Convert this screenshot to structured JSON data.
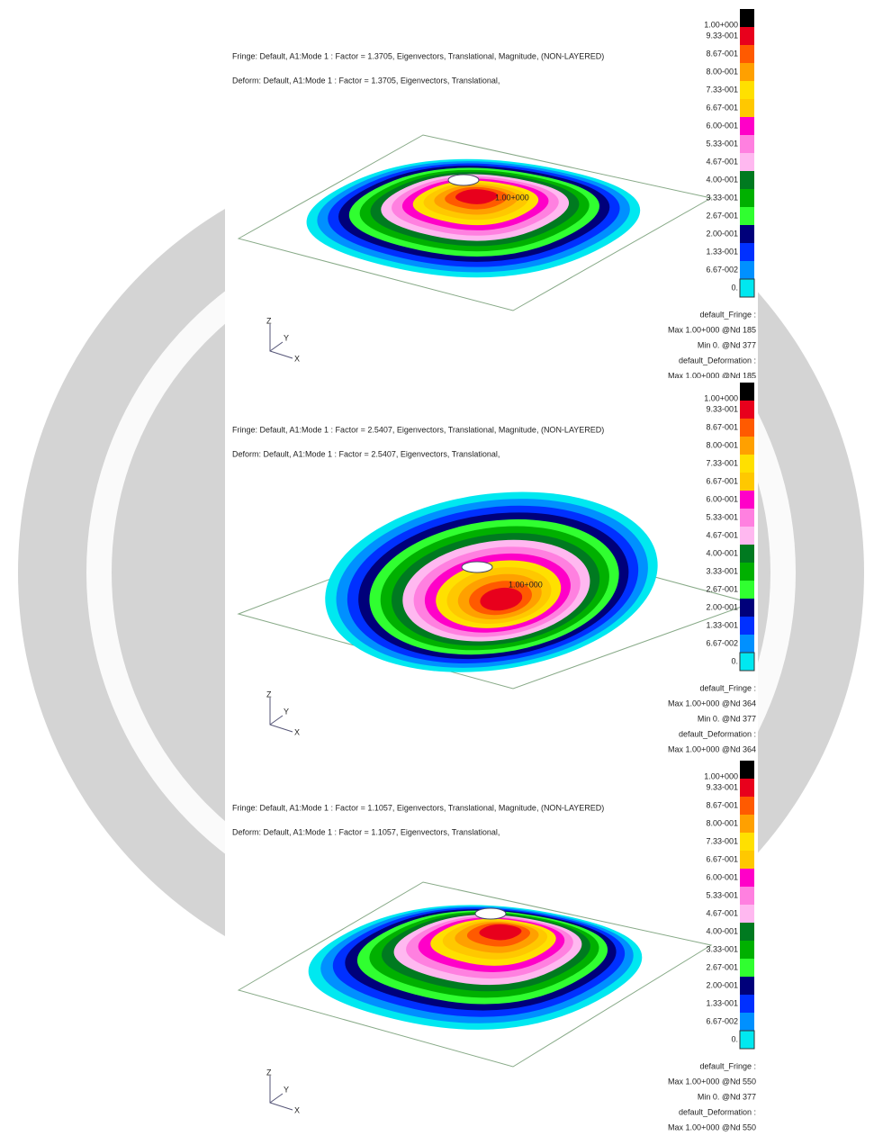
{
  "panels": [
    {
      "fringe_title": "Fringe: Default, A1:Mode 1 : Factor = 1.3705, Eigenvectors, Translational, Magnitude, (NON-LAYERED)",
      "deform_title": "Deform: Default, A1:Mode 1 : Factor = 1.3705, Eigenvectors, Translational,",
      "legend_labels": [
        "1.00+000",
        "9.33-001",
        "8.67-001",
        "8.00-001",
        "7.33-001",
        "6.67-001",
        "6.00-001",
        "5.33-001",
        "4.67-001",
        "4.00-001",
        "3.33-001",
        "2.67-001",
        "2.00-001",
        "1.33-001",
        "6.67-002",
        "0."
      ],
      "max_marker": "1.00+000",
      "info": [
        "default_Fringe :",
        "Max 1.00+000 @Nd 185",
        "Min 0. @Nd 377",
        "default_Deformation :",
        "Max 1.00+000 @Nd 185"
      ],
      "axes": [
        "Z",
        "Y",
        "X"
      ]
    },
    {
      "fringe_title": "Fringe: Default, A1:Mode 1 : Factor = 2.5407, Eigenvectors, Translational, Magnitude, (NON-LAYERED)",
      "deform_title": "Deform: Default, A1:Mode 1 : Factor = 2.5407, Eigenvectors, Translational,",
      "legend_labels": [
        "1.00+000",
        "9.33-001",
        "8.67-001",
        "8.00-001",
        "7.33-001",
        "6.67-001",
        "6.00-001",
        "5.33-001",
        "4.67-001",
        "4.00-001",
        "3.33-001",
        "2.67-001",
        "2.00-001",
        "1.33-001",
        "6.67-002",
        "0."
      ],
      "max_marker": "1.00+000",
      "info": [
        "default_Fringe :",
        "Max 1.00+000 @Nd 364",
        "Min 0. @Nd 377",
        "default_Deformation :",
        "Max 1.00+000 @Nd 364"
      ],
      "axes": [
        "Z",
        "Y",
        "X"
      ]
    },
    {
      "fringe_title": "Fringe: Default, A1:Mode 1 : Factor = 1.1057, Eigenvectors, Translational, Magnitude, (NON-LAYERED)",
      "deform_title": "Deform: Default, A1:Mode 1 : Factor = 1.1057, Eigenvectors, Translational,",
      "legend_labels": [
        "1.00+000",
        "9.33-001",
        "8.67-001",
        "8.00-001",
        "7.33-001",
        "6.67-001",
        "6.00-001",
        "5.33-001",
        "4.67-001",
        "4.00-001",
        "3.33-001",
        "2.67-001",
        "2.00-001",
        "1.33-001",
        "6.67-002",
        "0."
      ],
      "info": [
        "default_Fringe :",
        "Max 1.00+000 @Nd 550",
        "Min 0. @Nd 377",
        "default_Deformation :",
        "Max 1.00+000 @Nd 550"
      ],
      "axes": [
        "Z",
        "Y",
        "X"
      ]
    }
  ]
}
